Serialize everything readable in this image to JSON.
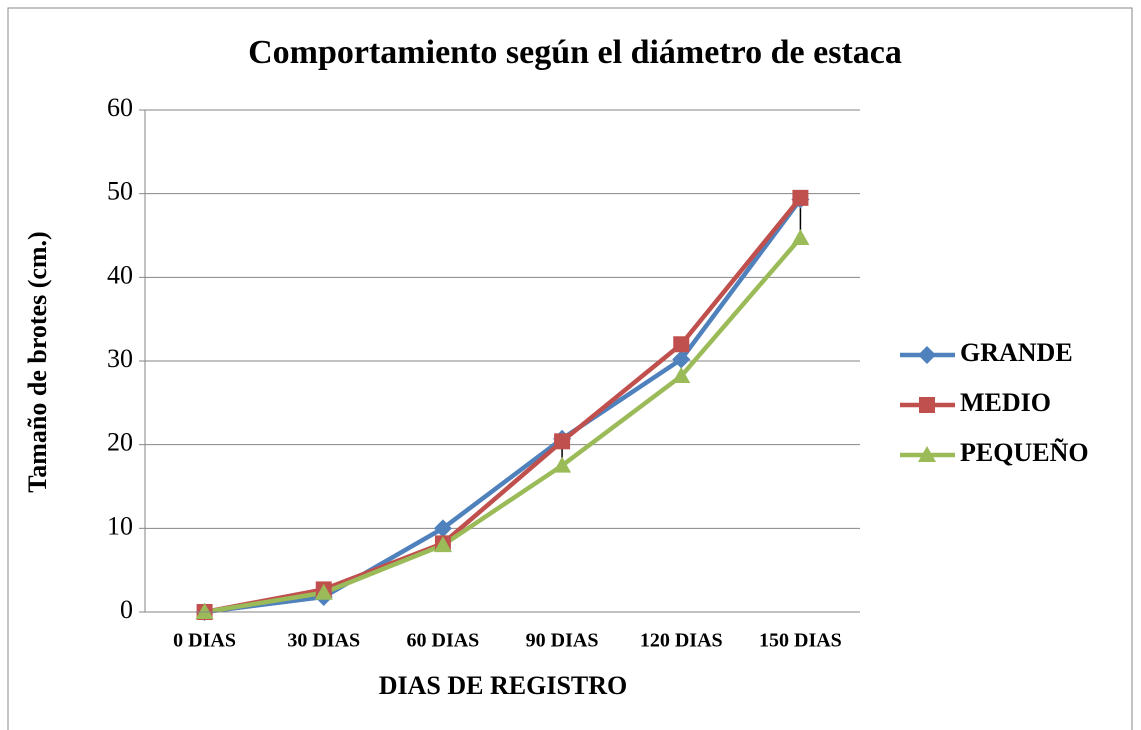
{
  "chart_data": {
    "type": "line",
    "title": "Comportamiento según el diámetro de estaca",
    "x_label": "DIAS DE REGISTRO",
    "y_label": "Tamaño de brotes (cm.)",
    "categories": [
      "0 DIAS",
      "30 DIAS",
      "60 DIAS",
      "90 DIAS",
      "120 DIAS",
      "150 DIAS"
    ],
    "series": [
      {
        "name": "GRANDE",
        "color": "#4f81bd",
        "marker": "diamond",
        "values": [
          0,
          1.8,
          10,
          20.7,
          30.2,
          49.3
        ]
      },
      {
        "name": "MEDIO",
        "color": "#c0504d",
        "marker": "square",
        "values": [
          0,
          2.7,
          8.2,
          20.4,
          32,
          49.5
        ]
      },
      {
        "name": "PEQUEÑO",
        "color": "#9bbb59",
        "marker": "triangle",
        "values": [
          0,
          2.3,
          8,
          17.5,
          28.2,
          44.7
        ]
      }
    ],
    "ylim": [
      0,
      60
    ],
    "yticks": [
      0,
      10,
      20,
      30,
      40,
      50,
      60
    ],
    "grid": true,
    "high_low_lines": true,
    "legend": "right"
  }
}
